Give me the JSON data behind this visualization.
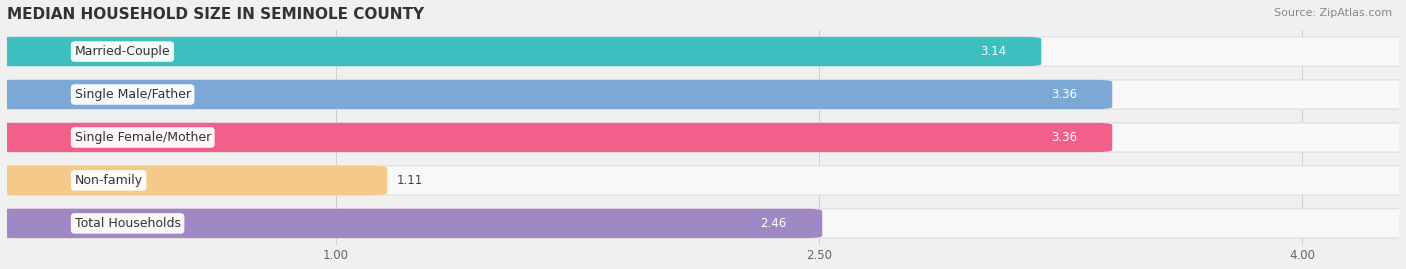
{
  "title": "MEDIAN HOUSEHOLD SIZE IN SEMINOLE COUNTY",
  "source": "Source: ZipAtlas.com",
  "categories": [
    "Married-Couple",
    "Single Male/Father",
    "Single Female/Mother",
    "Non-family",
    "Total Households"
  ],
  "values": [
    3.14,
    3.36,
    3.36,
    1.11,
    2.46
  ],
  "bar_colors": [
    "#3dbfbf",
    "#7ba8d4",
    "#f0608a",
    "#f5c98a",
    "#a088c4"
  ],
  "value_label_colors": [
    "white",
    "white",
    "white",
    "black",
    "black"
  ],
  "xticks": [
    1.0,
    2.5,
    4.0
  ],
  "xtick_labels": [
    "1.00",
    "2.50",
    "4.00"
  ],
  "title_fontsize": 11,
  "source_fontsize": 8,
  "bar_label_fontsize": 8.5,
  "category_fontsize": 9,
  "background_color": "#f0f0f0",
  "bar_background_color": "#e8e8e8",
  "row_bg_color": "#f8f8f8"
}
